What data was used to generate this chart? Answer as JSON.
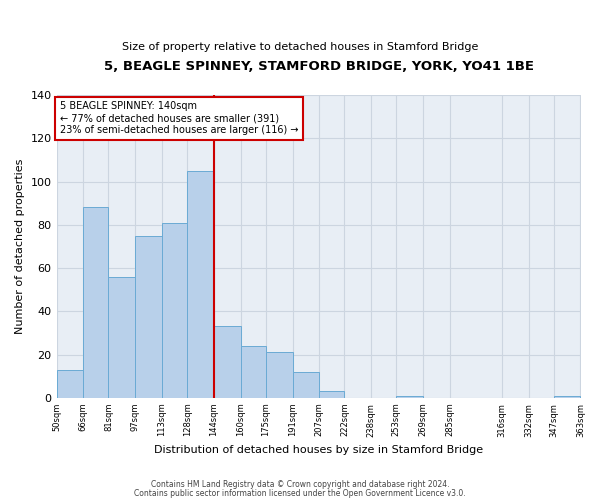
{
  "title": "5, BEAGLE SPINNEY, STAMFORD BRIDGE, YORK, YO41 1BE",
  "subtitle": "Size of property relative to detached houses in Stamford Bridge",
  "xlabel": "Distribution of detached houses by size in Stamford Bridge",
  "ylabel": "Number of detached properties",
  "bar_values": [
    13,
    88,
    56,
    75,
    81,
    105,
    33,
    24,
    21,
    12,
    3,
    0,
    0,
    1,
    0,
    0,
    0,
    1
  ],
  "bin_starts": [
    50,
    66,
    81,
    97,
    113,
    128,
    144,
    160,
    175,
    191,
    207,
    222,
    238,
    253,
    269,
    285,
    332,
    347
  ],
  "bin_ends": [
    66,
    81,
    97,
    113,
    128,
    144,
    160,
    175,
    191,
    207,
    222,
    238,
    253,
    269,
    285,
    316,
    347,
    363
  ],
  "tick_positions": [
    50,
    66,
    81,
    97,
    113,
    128,
    144,
    160,
    175,
    191,
    207,
    222,
    238,
    253,
    269,
    285,
    316,
    332,
    347,
    363
  ],
  "tick_labels": [
    "50sqm",
    "66sqm",
    "81sqm",
    "97sqm",
    "113sqm",
    "128sqm",
    "144sqm",
    "160sqm",
    "175sqm",
    "191sqm",
    "207sqm",
    "222sqm",
    "238sqm",
    "253sqm",
    "269sqm",
    "285sqm",
    "316sqm",
    "332sqm",
    "347sqm",
    "363sqm"
  ],
  "bar_color": "#b8d0ea",
  "bar_edge_color": "#6aaad4",
  "vline_x": 144,
  "vline_color": "#cc0000",
  "annotation_text": "5 BEAGLE SPINNEY: 140sqm\n← 77% of detached houses are smaller (391)\n23% of semi-detached houses are larger (116) →",
  "annotation_box_color": "#ffffff",
  "annotation_box_edge": "#cc0000",
  "grid_color": "#ccd5e0",
  "background_color": "#e8eef5",
  "ylim": [
    0,
    140
  ],
  "yticks": [
    0,
    20,
    40,
    60,
    80,
    100,
    120,
    140
  ],
  "footer1": "Contains HM Land Registry data © Crown copyright and database right 2024.",
  "footer2": "Contains public sector information licensed under the Open Government Licence v3.0."
}
